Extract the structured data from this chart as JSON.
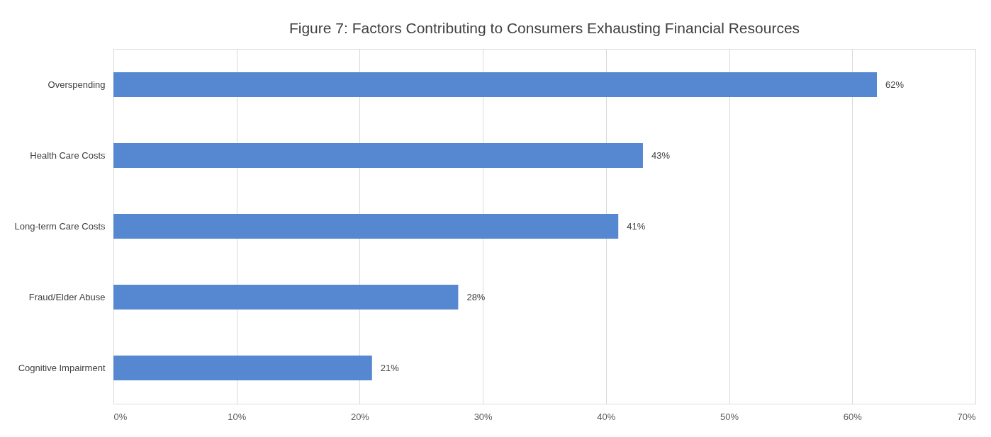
{
  "chart_data": {
    "type": "bar",
    "orientation": "horizontal",
    "title": "Figure 7: Factors Contributing to Consumers Exhausting Financial Resources",
    "categories": [
      "Overspending",
      "Health Care Costs",
      "Long-term Care Costs",
      "Fraud/Elder Abuse",
      "Cognitive Impairment"
    ],
    "values": [
      62,
      43,
      41,
      28,
      21
    ],
    "value_labels": [
      "62%",
      "43%",
      "41%",
      "28%",
      "21%"
    ],
    "color": "#5588d0",
    "xlim": [
      0,
      70
    ],
    "xticks": [
      {
        "value": 0,
        "label": "0%"
      },
      {
        "value": 10,
        "label": "10%"
      },
      {
        "value": 20,
        "label": "20%"
      },
      {
        "value": 30,
        "label": "30%"
      },
      {
        "value": 40,
        "label": "40%"
      },
      {
        "value": 50,
        "label": "50%"
      },
      {
        "value": 60,
        "label": "60%"
      },
      {
        "value": 70,
        "label": "70%"
      }
    ],
    "grid": "x"
  }
}
